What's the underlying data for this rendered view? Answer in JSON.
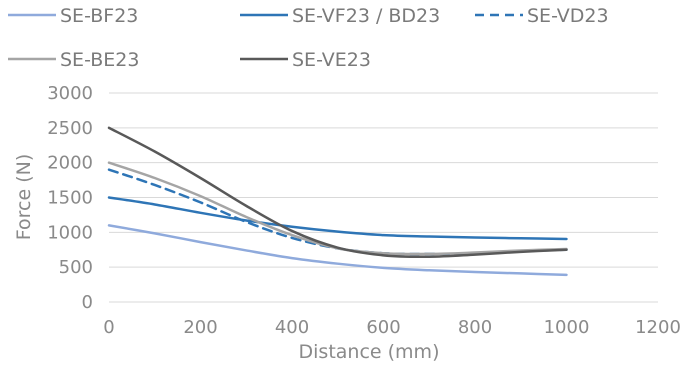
{
  "chart_data": {
    "type": "line",
    "title": "",
    "xlabel": "Distance (mm)",
    "ylabel": "Force (N)",
    "xlim": [
      0,
      1200
    ],
    "ylim": [
      0,
      3000
    ],
    "xticks": [
      0,
      200,
      400,
      600,
      800,
      1000,
      1200
    ],
    "yticks": [
      0,
      500,
      1000,
      1500,
      2000,
      2500,
      3000
    ],
    "grid": true,
    "legend_position": "top",
    "series": [
      {
        "name": "SE-BF23",
        "color": "#8faadc",
        "dash": "solid",
        "x": [
          0,
          100,
          200,
          300,
          400,
          500,
          600,
          700,
          800,
          900,
          1000
        ],
        "y": [
          1100,
          985,
          860,
          740,
          630,
          550,
          490,
          455,
          430,
          410,
          390
        ]
      },
      {
        "name": "SE-VF23 / BD23",
        "color": "#2e75b6",
        "dash": "solid",
        "x": [
          0,
          100,
          200,
          300,
          400,
          500,
          600,
          700,
          800,
          900,
          1000
        ],
        "y": [
          1500,
          1400,
          1280,
          1170,
          1080,
          1010,
          960,
          940,
          925,
          915,
          905
        ]
      },
      {
        "name": "SE-VD23",
        "color": "#2e75b6",
        "dash": "dashed",
        "x": [
          0,
          100,
          200,
          300,
          400,
          500,
          600,
          700,
          800,
          900,
          1000
        ],
        "y": [
          1900,
          1680,
          1430,
          1150,
          920,
          770,
          700,
          690,
          700,
          730,
          750
        ]
      },
      {
        "name": "SE-BE23",
        "color": "#a5a5a5",
        "dash": "solid",
        "x": [
          0,
          100,
          200,
          300,
          400,
          500,
          600,
          700,
          800,
          900,
          1000
        ],
        "y": [
          2000,
          1780,
          1520,
          1220,
          960,
          770,
          700,
          690,
          710,
          740,
          760
        ]
      },
      {
        "name": "SE-VE23",
        "color": "#595959",
        "dash": "solid",
        "x": [
          0,
          100,
          200,
          300,
          400,
          500,
          600,
          700,
          800,
          900,
          1000
        ],
        "y": [
          2500,
          2160,
          1780,
          1380,
          1020,
          780,
          670,
          650,
          680,
          720,
          750
        ]
      }
    ]
  },
  "axis_color": "#d9d9d9",
  "grid_color": "#d9d9d9",
  "tick_color": "#8a8a8a"
}
